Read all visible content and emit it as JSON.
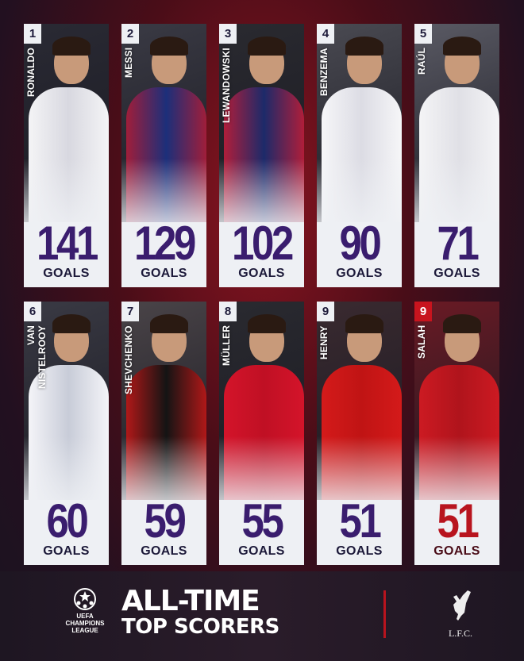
{
  "scorers": [
    {
      "rank": "1",
      "name": "RONALDO",
      "goals": "141",
      "goals_label": "GOALS",
      "kit": "#f4f4f6",
      "kit2": "#d8d8e0",
      "bg": "#2a2a34"
    },
    {
      "rank": "2",
      "name": "MESSI",
      "goals": "129",
      "goals_label": "GOALS",
      "kit": "#a01e3a",
      "kit2": "#1c2f7a",
      "bg": "#3a3a44"
    },
    {
      "rank": "3",
      "name": "LEWANDOWSKI",
      "goals": "102",
      "goals_label": "GOALS",
      "kit": "#b01e3a",
      "kit2": "#1c2a6a",
      "bg": "#2a2a30"
    },
    {
      "rank": "4",
      "name": "BENZEMA",
      "goals": "90",
      "goals_label": "GOALS",
      "kit": "#f6f6f8",
      "kit2": "#dcdce4",
      "bg": "#4a4a52"
    },
    {
      "rank": "5",
      "name": "RAÚL",
      "goals": "71",
      "goals_label": "GOALS",
      "kit": "#f4f4f6",
      "kit2": "#e0e0e6",
      "bg": "#5a5a64"
    },
    {
      "rank": "6",
      "name": "VAN NISTELROOY",
      "goals": "60",
      "goals_label": "GOALS",
      "kit": "#f4f4f8",
      "kit2": "#c8ccd8",
      "bg": "#3a3a44"
    },
    {
      "rank": "7",
      "name": "SHEVCHENKO",
      "goals": "59",
      "goals_label": "GOALS",
      "kit": "#b01818",
      "kit2": "#141414",
      "bg": "#4a4448"
    },
    {
      "rank": "8",
      "name": "MÜLLER",
      "goals": "55",
      "goals_label": "GOALS",
      "kit": "#d4142a",
      "kit2": "#c01024",
      "bg": "#2a2a30"
    },
    {
      "rank": "9",
      "name": "HENRY",
      "goals": "51",
      "goals_label": "GOALS",
      "kit": "#d41a1a",
      "kit2": "#c01414",
      "bg": "#3a2a30"
    },
    {
      "rank": "9",
      "name": "SALAH",
      "goals": "51",
      "goals_label": "GOALS",
      "kit": "#cc1a22",
      "kit2": "#b0141c",
      "bg": "#6a1a24",
      "highlight": true
    }
  ],
  "footer": {
    "competition_logo": "UEFA CHAMPIONS LEAGUE",
    "title_line1": "ALL-TIME",
    "title_line2": "TOP SCORERS",
    "club_logo": "L.F.C."
  },
  "colors": {
    "goals_number": "#3a1d6e",
    "highlight": "#b8141e",
    "divider": "#b8141e"
  }
}
